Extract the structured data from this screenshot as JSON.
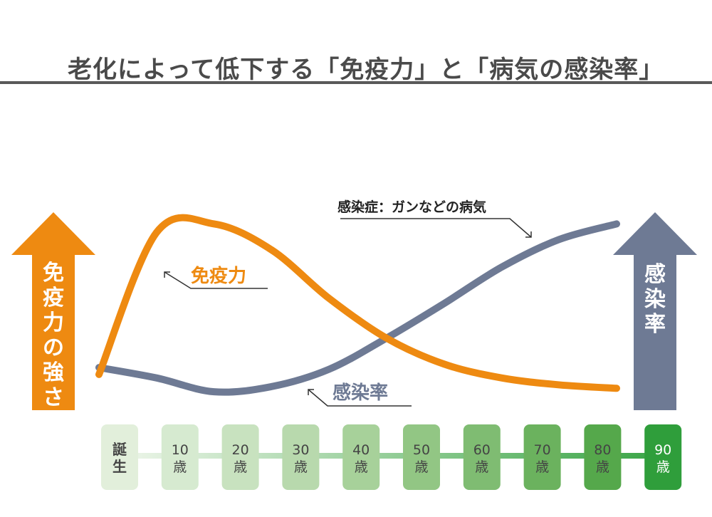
{
  "title": "老化によって低下する「免疫力」と「病気の感染率」",
  "left_arrow": {
    "chars": [
      "免",
      "疫",
      "力",
      "の",
      "強",
      "さ"
    ],
    "color": "#ee8a11"
  },
  "right_arrow": {
    "chars": [
      "感",
      "染",
      "率"
    ],
    "color": "#6e7a94"
  },
  "annotation_disease": "感染症：ガンなどの病気",
  "colors": {
    "immunity": "#ee8a11",
    "infection": "#6e7a94"
  },
  "chart_data": {
    "type": "line",
    "x_categories": [
      "誕生",
      "10歳",
      "20歳",
      "30歳",
      "40歳",
      "50歳",
      "60歳",
      "70歳",
      "80歳",
      "90歳"
    ],
    "x_tick_labels": [
      [
        "誕",
        "生"
      ],
      [
        "10",
        "歳"
      ],
      [
        "20",
        "歳"
      ],
      [
        "30",
        "歳"
      ],
      [
        "40",
        "歳"
      ],
      [
        "50",
        "歳"
      ],
      [
        "60",
        "歳"
      ],
      [
        "70",
        "歳"
      ],
      [
        "80",
        "歳"
      ],
      [
        "90",
        "歳"
      ]
    ],
    "x_tick_colors": [
      "#e2efdb",
      "#d6ead0",
      "#c8e2bf",
      "#b8d9ad",
      "#a7d19a",
      "#92c684",
      "#7fbc72",
      "#6bb25e",
      "#55a84b",
      "#2f9e3b"
    ],
    "x_tick_text_colors": [
      "#444444",
      "#444444",
      "#444444",
      "#444444",
      "#444444",
      "#444444",
      "#444444",
      "#444444",
      "#444444",
      "#ffffff"
    ],
    "y_scale": "relative, unlabeled (0 = low, 100 = high)",
    "series": [
      {
        "name": "免疫力",
        "color": "#ee8a11",
        "values": [
          12,
          94,
          99,
          84,
          56,
          33,
          18,
          10,
          6,
          4
        ]
      },
      {
        "name": "感染率",
        "color": "#6e7a94",
        "values": [
          16,
          10,
          2,
          5,
          15,
          33,
          53,
          74,
          90,
          99
        ]
      }
    ]
  }
}
